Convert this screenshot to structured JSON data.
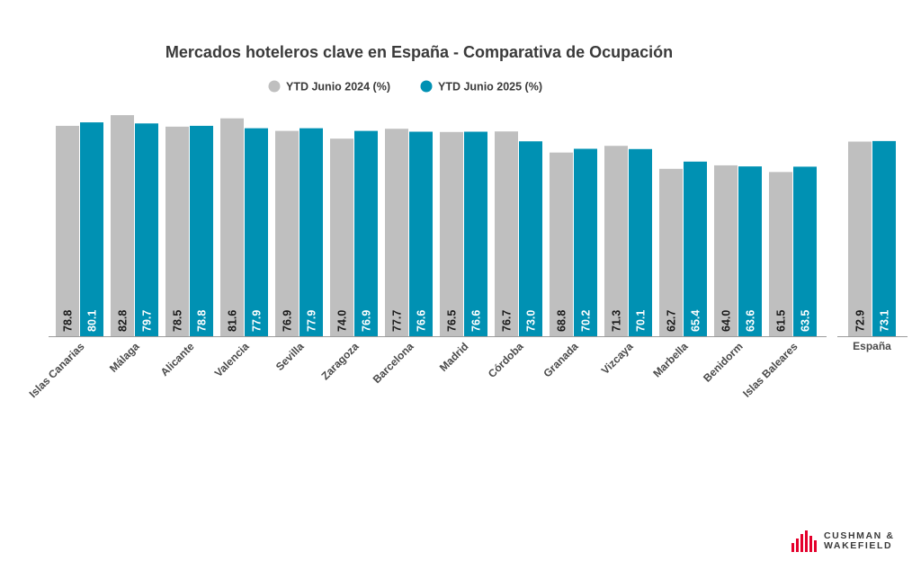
{
  "chart_data": {
    "type": "bar",
    "title": "Mercados hoteleros clave en España - Comparativa de Ocupación",
    "legend_position": "top-center",
    "categories": [
      "Islas Canarias",
      "Málaga",
      "Alicante",
      "Valencia",
      "Sevilla",
      "Zaragoza",
      "Barcelona",
      "Madrid",
      "Córdoba",
      "Granada",
      "Vizcaya",
      "Marbella",
      "Benidorm",
      "Islas Baleares"
    ],
    "series": [
      {
        "name": "YTD Junio 2024 (%)",
        "color": "#bfbfbf",
        "label_color": "#1a1a1a",
        "values": [
          78.8,
          82.8,
          78.5,
          81.6,
          76.9,
          74.0,
          77.7,
          76.5,
          76.7,
          68.8,
          71.3,
          62.7,
          64.0,
          61.5
        ]
      },
      {
        "name": "YTD Junio 2025 (%)",
        "color": "#0091b3",
        "label_color": "#ffffff",
        "values": [
          80.1,
          79.7,
          78.8,
          77.9,
          77.9,
          76.9,
          76.6,
          76.6,
          73.0,
          70.2,
          70.1,
          65.4,
          63.6,
          63.5
        ]
      }
    ],
    "total": {
      "category": "España",
      "values": [
        72.9,
        73.1
      ]
    },
    "xlabel": "",
    "ylabel": "",
    "ylim": [
      0,
      100
    ],
    "grid": false
  },
  "brand": {
    "line1": "CUSHMAN &",
    "line2": "WAKEFIELD",
    "color": "#e4002b"
  }
}
